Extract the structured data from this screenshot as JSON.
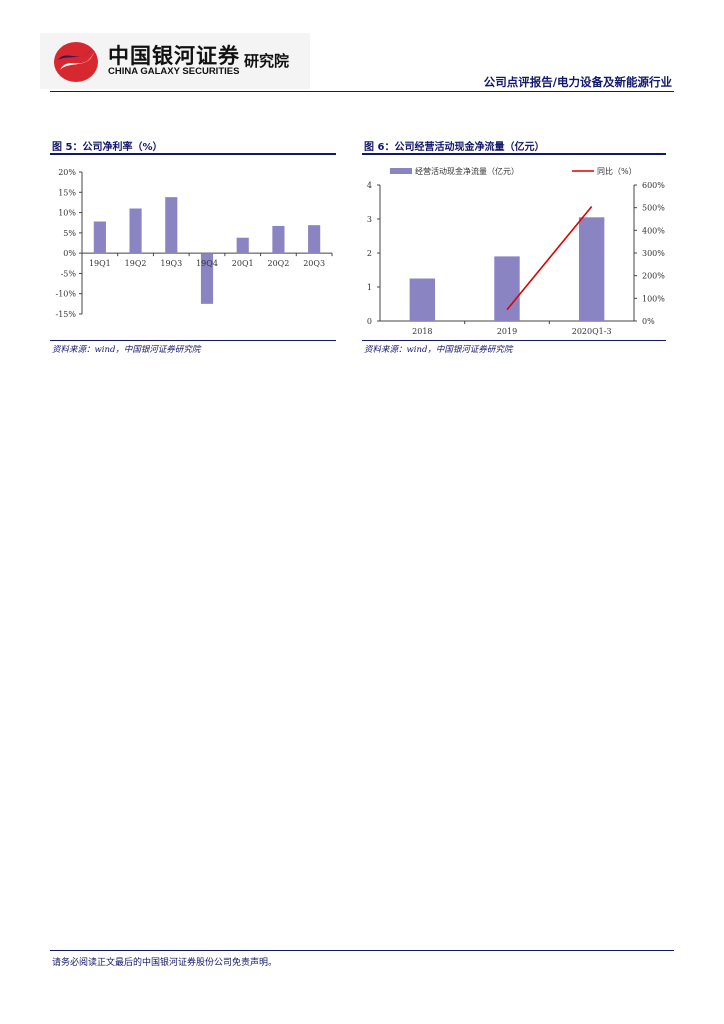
{
  "header": {
    "logo_cn": "中国银河证券",
    "logo_en": "CHINA GALAXY SECURITIES",
    "institute": "研究院",
    "report_type": "公司点评报告/电力设备及新能源行业",
    "brand_colors": {
      "red": "#d7282f",
      "blue": "#12186a"
    }
  },
  "figures": [
    {
      "title": "图 5：公司净利率（%）",
      "source": "资料来源：wind，中国银河证券研究院"
    },
    {
      "title": "图 6：公司经营活动现金净流量（亿元）",
      "source": "资料来源：wind，中国银河证券研究院"
    }
  ],
  "chart_data": [
    {
      "type": "bar",
      "categories": [
        "19Q1",
        "19Q2",
        "19Q3",
        "19Q4",
        "20Q1",
        "20Q2",
        "20Q3"
      ],
      "values": [
        7.8,
        11.0,
        13.8,
        -12.5,
        3.8,
        6.7,
        6.9
      ],
      "y_ticks": [
        "20%",
        "15%",
        "10%",
        "5%",
        "0%",
        "-5%",
        "-10%",
        "-15%"
      ],
      "ylim": [
        -15,
        20
      ],
      "bar_color": "#8a84c2",
      "grid": false
    },
    {
      "type": "bar",
      "categories": [
        "2018",
        "2019",
        "2020Q1-3"
      ],
      "series": [
        {
          "name": "经营活动现金净流量（亿元）",
          "type": "bar",
          "axis": "left",
          "values": [
            1.25,
            1.9,
            3.05
          ],
          "color": "#8a84c2"
        },
        {
          "name": "同比（%）",
          "type": "line",
          "axis": "right",
          "values": [
            null,
            50,
            505
          ],
          "color": "#e00000"
        }
      ],
      "y_ticks": [
        "4",
        "3",
        "2",
        "1",
        "0"
      ],
      "y2_ticks": [
        "600%",
        "500%",
        "400%",
        "300%",
        "200%",
        "100%",
        "0%"
      ],
      "ylim": [
        0,
        4
      ],
      "y2lim": [
        0,
        600
      ],
      "legend": "top",
      "grid": false
    }
  ],
  "footer": {
    "disclaimer": "请务必阅读正文最后的中国银河证券股份公司免责声明。"
  }
}
